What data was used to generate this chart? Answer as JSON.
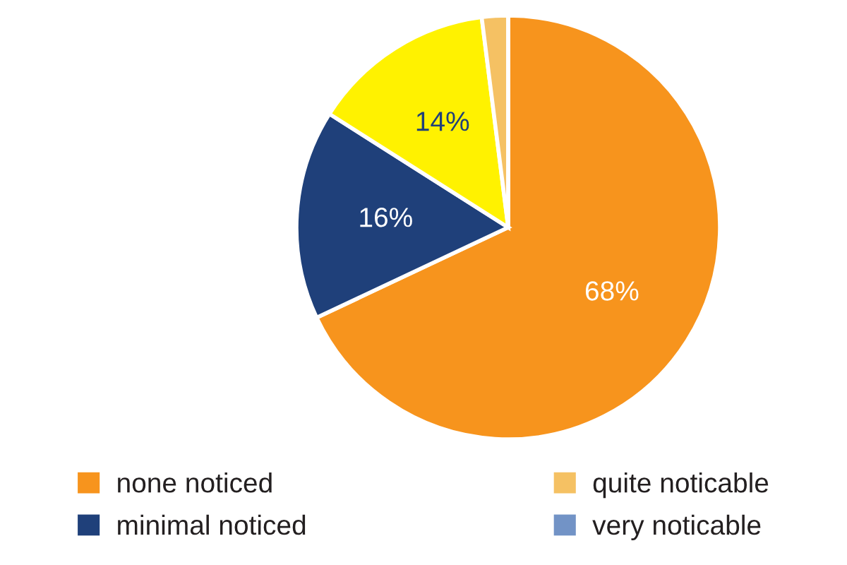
{
  "chart_data": {
    "type": "pie",
    "categories": [
      "none noticed",
      "minimal noticed",
      null,
      "quite noticable",
      "very noticable"
    ],
    "values": [
      68,
      16,
      14,
      2,
      0
    ],
    "colors": [
      "#f7941d",
      "#1f407a",
      "#fff200",
      "#f5c163",
      "#7293c6"
    ],
    "value_labels": [
      "68%",
      "16%",
      "14%",
      null,
      null
    ],
    "legend": "bottom"
  }
}
